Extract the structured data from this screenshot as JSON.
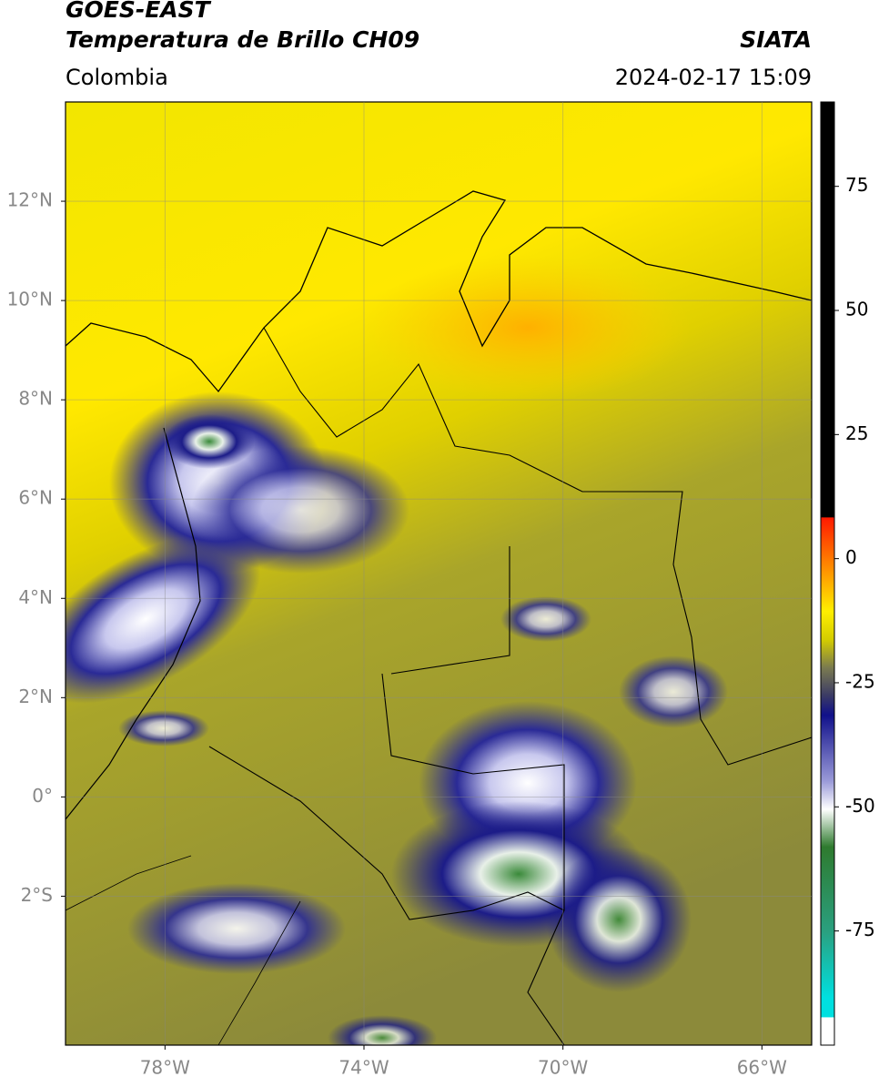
{
  "header": {
    "title": "GOES-EAST",
    "subtitle": "Temperatura de Brillo CH09",
    "source": "SIATA",
    "region": "Colombia",
    "datetime": "2024-02-17 15:09"
  },
  "map": {
    "lon_range": [
      -80,
      -65
    ],
    "lat_range": [
      -5,
      14
    ],
    "lon_ticks": [
      {
        "value": -78,
        "label": "78°W"
      },
      {
        "value": -74,
        "label": "74°W"
      },
      {
        "value": -70,
        "label": "70°W"
      },
      {
        "value": -66,
        "label": "66°W"
      }
    ],
    "lat_ticks": [
      {
        "value": 12,
        "label": "12°N"
      },
      {
        "value": 10,
        "label": "10°N"
      },
      {
        "value": 8,
        "label": "8°N"
      },
      {
        "value": 6,
        "label": "6°N"
      },
      {
        "value": 4,
        "label": "4°N"
      },
      {
        "value": 2,
        "label": "2°N"
      },
      {
        "value": 0,
        "label": "0°"
      },
      {
        "value": -2,
        "label": "2°S"
      }
    ],
    "grid": true
  },
  "colorbar": {
    "range": [
      -98,
      92
    ],
    "ticks": [
      75,
      50,
      25,
      0,
      -25,
      -50,
      -75
    ]
  }
}
